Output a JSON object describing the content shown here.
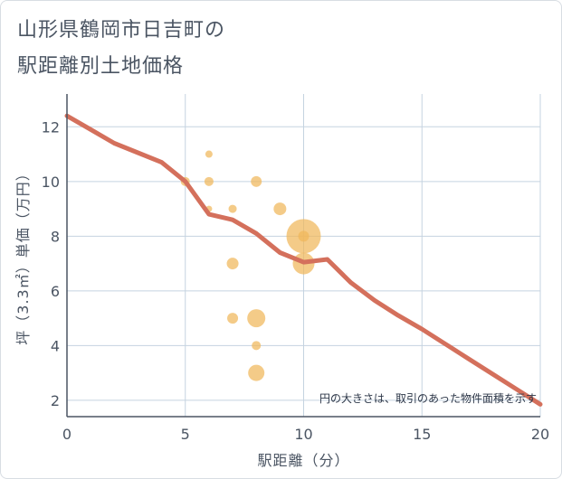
{
  "header": {
    "title_line1": "山形県鶴岡市日吉町の",
    "title_line2": "駅距離別土地価格"
  },
  "chart_data": {
    "type": "scatter",
    "title": "山形県鶴岡市日吉町の駅距離別土地価格",
    "xlabel": "駅距離（分）",
    "ylabel": "坪（3.3㎡）単価（万円）",
    "xlim": [
      0,
      20
    ],
    "ylim": [
      1.4,
      13.2
    ],
    "x_ticks": [
      0,
      5,
      10,
      15,
      20
    ],
    "y_ticks": [
      2,
      4,
      6,
      8,
      10,
      12
    ],
    "grid": true,
    "note": "円の大きさは、取引のあった物件面積を示す",
    "colors": {
      "bubble": "#f0b75a",
      "line": "#d4705c",
      "grid": "#c5d3e0",
      "axis": "#4b5563"
    },
    "points": [
      {
        "x": 5,
        "y": 10,
        "size": 1.0
      },
      {
        "x": 6,
        "y": 11,
        "size": 0.8
      },
      {
        "x": 6,
        "y": 10,
        "size": 1.0
      },
      {
        "x": 6,
        "y": 9,
        "size": 0.7
      },
      {
        "x": 7,
        "y": 9,
        "size": 0.9
      },
      {
        "x": 7,
        "y": 7,
        "size": 1.3
      },
      {
        "x": 7,
        "y": 5,
        "size": 1.2
      },
      {
        "x": 8,
        "y": 10,
        "size": 1.2
      },
      {
        "x": 8,
        "y": 5,
        "size": 2.0
      },
      {
        "x": 8,
        "y": 4,
        "size": 1.0
      },
      {
        "x": 8,
        "y": 3,
        "size": 1.8
      },
      {
        "x": 9,
        "y": 9,
        "size": 1.4
      },
      {
        "x": 10,
        "y": 8,
        "size": 3.8
      },
      {
        "x": 10,
        "y": 7,
        "size": 2.4
      },
      {
        "x": 10,
        "y": 8,
        "size": 1.2
      }
    ],
    "series": [
      {
        "name": "推定価格",
        "x": [
          0,
          1,
          2,
          3,
          4,
          5,
          6,
          7,
          8,
          9,
          10,
          11,
          12,
          13,
          14,
          15,
          16,
          17,
          18,
          19,
          20
        ],
        "y": [
          12.4,
          11.9,
          11.4,
          11.05,
          10.7,
          10.0,
          8.8,
          8.6,
          8.1,
          7.4,
          7.05,
          7.15,
          6.3,
          5.65,
          5.1,
          4.6,
          4.05,
          3.5,
          2.95,
          2.4,
          1.85
        ]
      }
    ]
  }
}
